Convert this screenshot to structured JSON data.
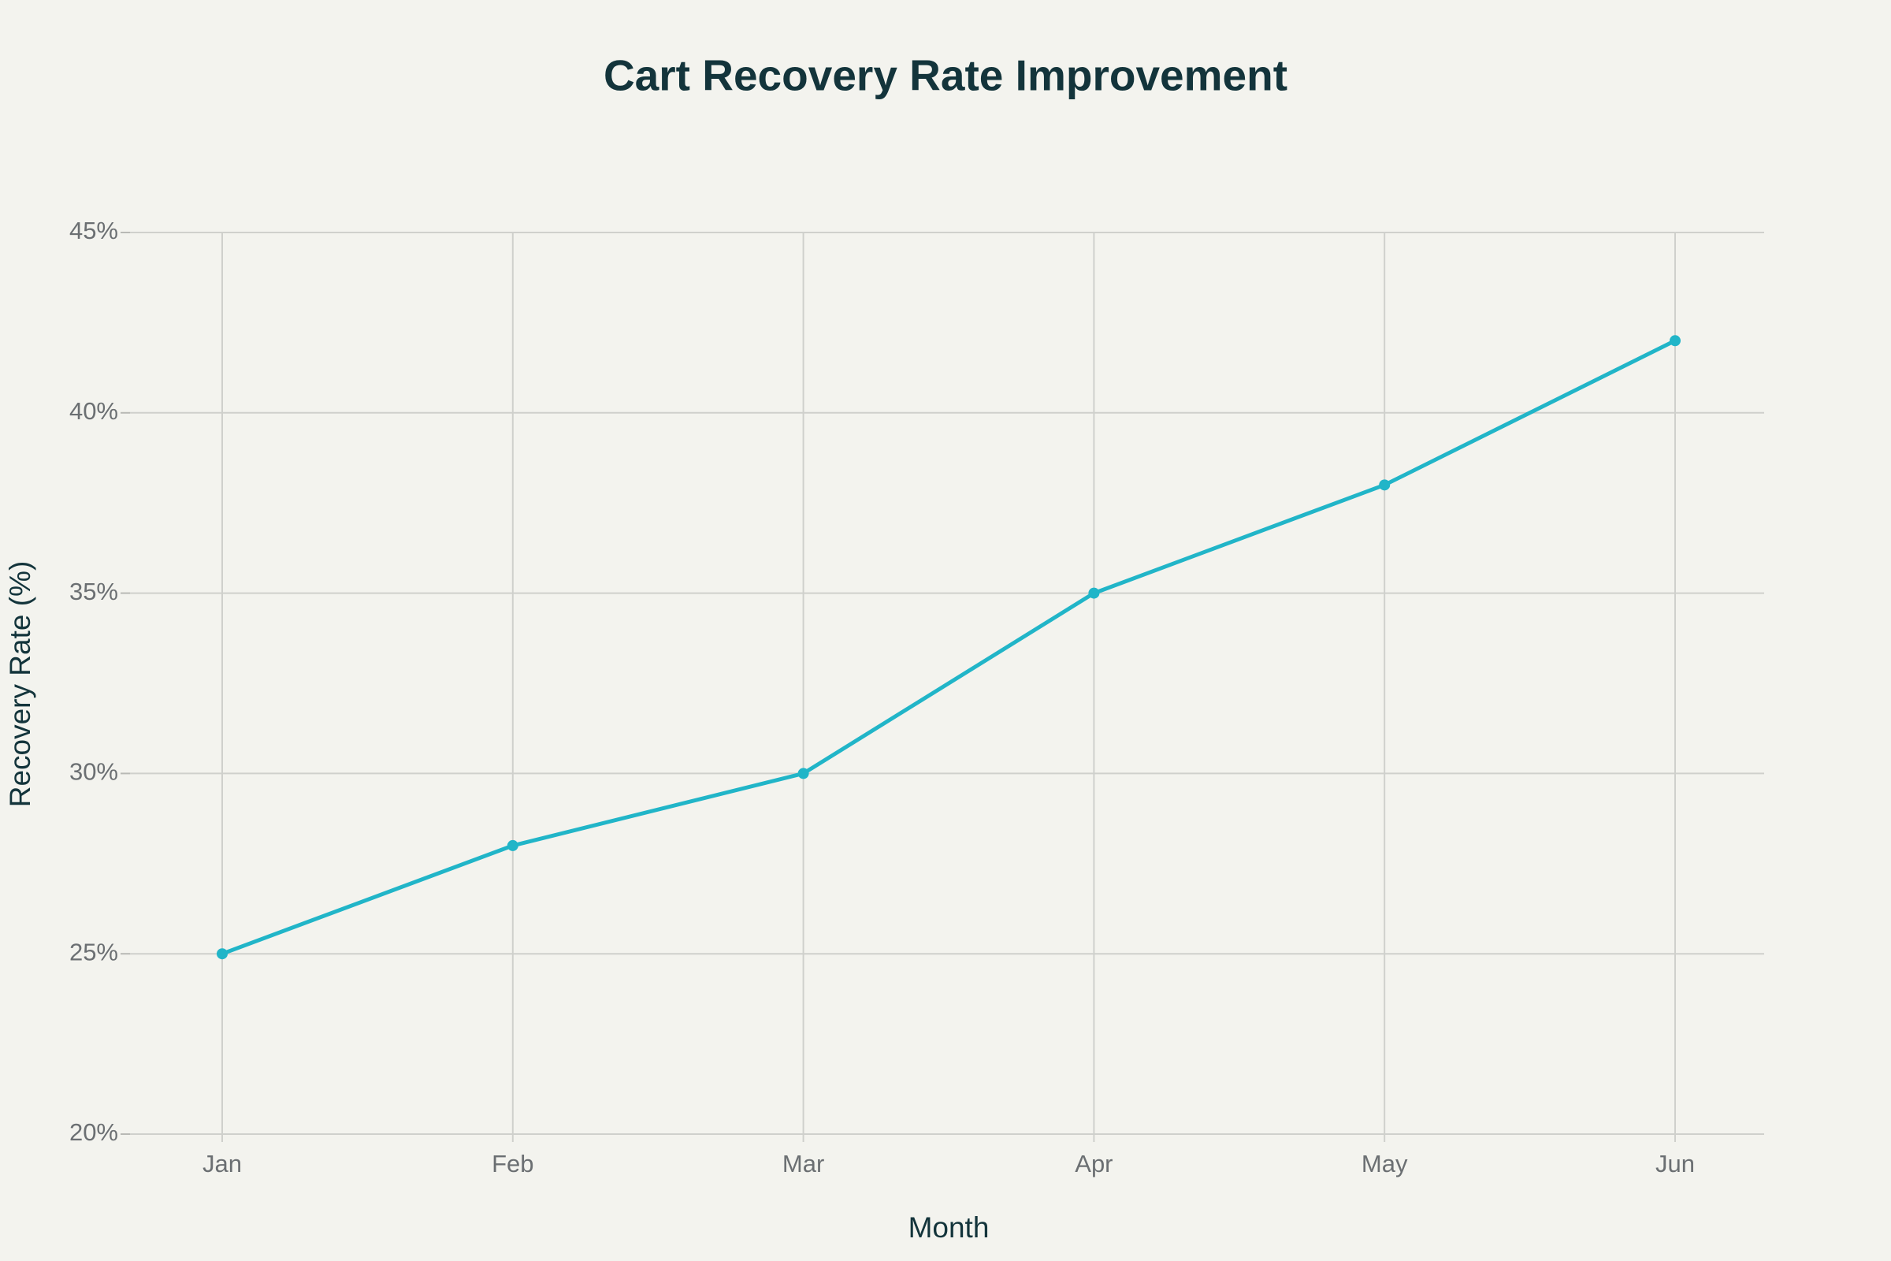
{
  "chart_data": {
    "type": "line",
    "title": "Cart Recovery Rate Improvement",
    "x_label": "Month",
    "y_label": "Recovery Rate (%)",
    "categories": [
      "Jan",
      "Feb",
      "Mar",
      "Apr",
      "May",
      "Jun"
    ],
    "series": [
      {
        "name": "Recovery Rate",
        "color": "#21b5c8",
        "values": [
          25,
          28,
          30,
          35,
          38,
          42
        ]
      }
    ],
    "ylim": [
      20,
      45
    ],
    "yticks": [
      {
        "value": 20,
        "label": "20%"
      },
      {
        "value": 25,
        "label": "25%"
      },
      {
        "value": 30,
        "label": "30%"
      },
      {
        "value": 35,
        "label": "35%"
      },
      {
        "value": 40,
        "label": "40%"
      },
      {
        "value": 45,
        "label": "45%"
      }
    ],
    "grid": true
  }
}
